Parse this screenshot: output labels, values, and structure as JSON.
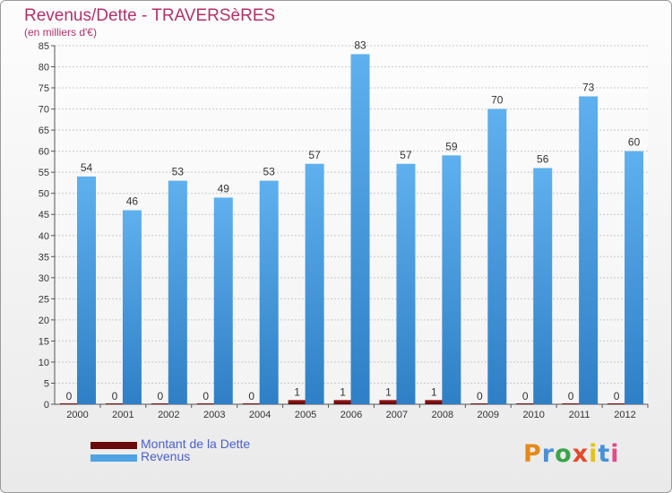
{
  "header": {
    "title": "Revenus/Dette - TRAVERSèRES",
    "subtitle": "(en milliers d'€)"
  },
  "legend": {
    "items": [
      {
        "label": "Montant de la Dette",
        "color": "#6b0a0a"
      },
      {
        "label": "Revenus",
        "color": "#4ea3e3"
      }
    ]
  },
  "logo": {
    "text": "Proxiti",
    "colors": [
      "#e3891a",
      "#4a90d9",
      "#3aa54a",
      "#e34a2a",
      "#e3c21a",
      "#4a90d9",
      "#e34a8a"
    ]
  },
  "chart_data": {
    "type": "bar",
    "categories": [
      "2000",
      "2001",
      "2002",
      "2003",
      "2004",
      "2005",
      "2006",
      "2007",
      "2008",
      "2009",
      "2010",
      "2011",
      "2012"
    ],
    "series": [
      {
        "name": "Montant de la Dette",
        "values": [
          0,
          0,
          0,
          0,
          0,
          1,
          1,
          1,
          1,
          0,
          0,
          0,
          0
        ],
        "color": "#7a1010"
      },
      {
        "name": "Revenus",
        "values": [
          54,
          46,
          53,
          49,
          53,
          57,
          83,
          57,
          59,
          70,
          56,
          73,
          60
        ],
        "color": "#4ea3e3"
      }
    ],
    "ylim": [
      0,
      85
    ],
    "yticks": [
      "0",
      "5",
      "10",
      "15",
      "20",
      "25",
      "30",
      "35",
      "40",
      "45",
      "50",
      "55",
      "60",
      "65",
      "70",
      "75",
      "80",
      "85"
    ],
    "grid": true,
    "legend_position": "bottom-left"
  }
}
